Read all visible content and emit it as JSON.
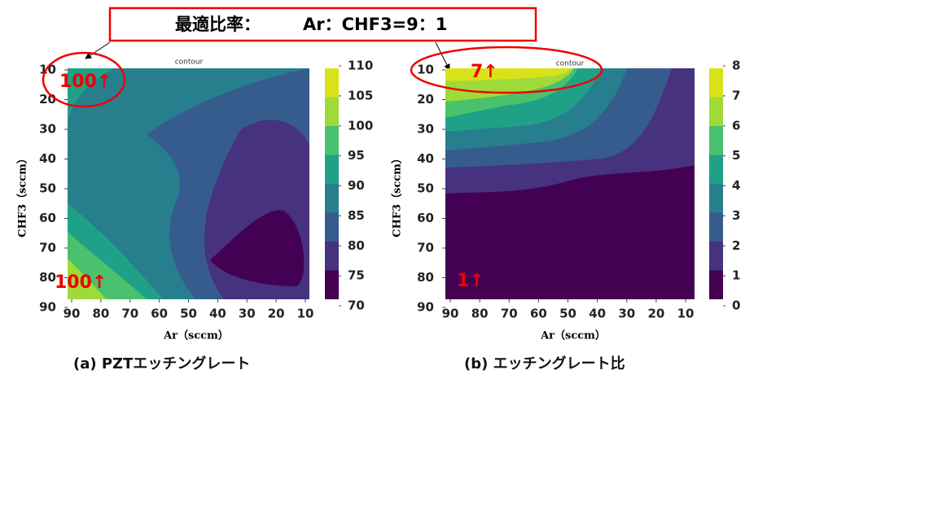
{
  "callout": {
    "label": "最適比率：",
    "ratio": "Ar：CHF3=9：1"
  },
  "panels": [
    {
      "title": "contour",
      "x_label": "Ar（sccm）",
      "y_label": "CHF3（sccm）",
      "xticks": [
        90,
        80,
        70,
        60,
        50,
        40,
        30,
        20,
        10
      ],
      "yticks": [
        10,
        20,
        30,
        40,
        50,
        60,
        70,
        80,
        90
      ],
      "colorbar_ticks": [
        70,
        75,
        80,
        85,
        90,
        95,
        100,
        105,
        110
      ],
      "colorbar_colors": [
        "#440154",
        "#46327e",
        "#365c8d",
        "#277f8e",
        "#1fa187",
        "#4ac16d",
        "#a0da39",
        "#d8e219"
      ],
      "annotations": [
        "100↑",
        "100↑"
      ],
      "caption": "(a)  PZTエッチングレート"
    },
    {
      "title": "contour",
      "x_label": "Ar（sccm）",
      "y_label": "CHF3（sccm）",
      "xticks": [
        90,
        80,
        70,
        60,
        50,
        40,
        30,
        20,
        10
      ],
      "yticks": [
        10,
        20,
        30,
        40,
        50,
        60,
        70,
        80,
        90
      ],
      "colorbar_ticks": [
        0,
        1,
        2,
        3,
        4,
        5,
        6,
        7,
        8
      ],
      "colorbar_colors": [
        "#440154",
        "#46327e",
        "#365c8d",
        "#277f8e",
        "#1fa187",
        "#4ac16d",
        "#a0da39",
        "#d8e219"
      ],
      "annotations": [
        "7↑",
        "1↑"
      ],
      "caption": "(b)  エッチングレート比"
    }
  ]
}
